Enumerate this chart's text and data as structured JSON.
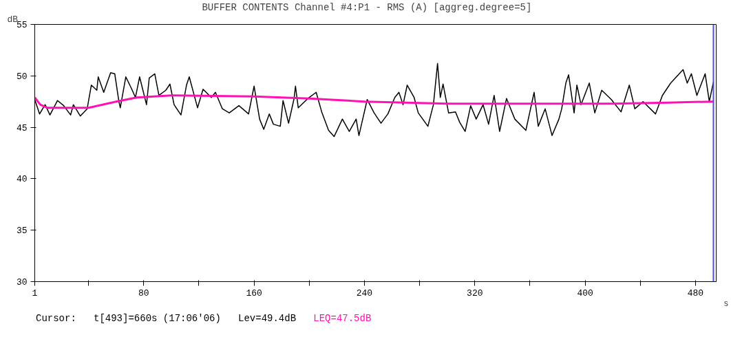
{
  "chart_data": {
    "type": "line",
    "title": "BUFFER CONTENTS  Channel #4:P1  -  RMS (A) [aggreg.degree=5]",
    "xlabel": "s",
    "ylabel": "dB",
    "annotations": [
      "Cursor:   t[493]=660s (17:06'06)"
    ],
    "xlim": [
      1,
      495
    ],
    "ylim": [
      30,
      55
    ],
    "xticks": [
      1,
      {
        "value": 40,
        "label": null
      },
      80,
      {
        "value": 120,
        "label": null
      },
      160,
      {
        "value": 200,
        "label": null
      },
      240,
      {
        "value": 280,
        "label": null
      },
      320,
      {
        "value": 360,
        "label": null
      },
      400,
      {
        "value": 440,
        "label": null
      },
      480
    ],
    "yticks": [
      30,
      35,
      40,
      45,
      50,
      55
    ],
    "grid": false,
    "line_style": "solid",
    "ref_lines": [
      {
        "axis": "x",
        "value": 493,
        "label": null,
        "color": "#5050c8"
      }
    ],
    "series": [
      {
        "name": "Lev=49.4dB",
        "color": "#000000",
        "x": [
          1,
          4.5,
          8.5,
          12,
          17.5,
          22,
          27,
          29,
          34,
          39,
          42,
          46,
          47,
          51,
          56,
          59,
          62,
          63,
          67,
          71,
          74,
          77,
          82,
          84,
          88,
          91,
          96,
          99,
          102,
          107,
          111,
          113,
          119,
          123,
          129,
          132,
          137,
          142,
          149,
          156,
          160,
          164,
          167,
          171,
          174,
          179,
          181,
          185,
          189,
          190,
          192,
          199,
          205,
          209,
          214,
          218,
          224,
          229,
          234,
          236,
          242,
          247,
          252,
          257,
          262,
          265,
          268,
          271,
          276,
          279,
          286,
          290,
          293,
          295,
          297,
          301,
          306,
          309,
          313,
          317,
          321,
          326,
          330,
          334,
          338,
          343,
          349,
          357,
          363,
          366,
          371,
          376,
          381,
          383,
          386,
          388,
          392,
          394,
          397,
          403,
          407,
          412,
          419,
          426,
          432,
          436,
          442,
          451,
          456,
          462,
          471,
          474,
          477,
          481,
          487,
          490,
          493
        ],
        "values": [
          47.7,
          46.3,
          47.2,
          46.2,
          47.6,
          47.1,
          46.2,
          47.2,
          46.1,
          46.8,
          49.1,
          48.6,
          49.9,
          48.4,
          50.3,
          50.2,
          47.5,
          46.9,
          49.9,
          48.8,
          47.9,
          49.9,
          47.2,
          49.8,
          50.2,
          48.1,
          48.6,
          49.2,
          47.2,
          46.2,
          49.1,
          49.9,
          46.9,
          48.7,
          47.9,
          48.4,
          46.8,
          46.4,
          47.1,
          46.3,
          49.0,
          45.8,
          44.8,
          46.3,
          45.3,
          45.1,
          47.6,
          45.4,
          47.8,
          49.0,
          46.9,
          47.8,
          48.4,
          46.5,
          44.7,
          44.1,
          45.8,
          44.6,
          45.8,
          44.2,
          47.7,
          46.4,
          45.4,
          46.3,
          47.9,
          48.4,
          47.2,
          49.1,
          47.9,
          46.4,
          45.1,
          47.2,
          51.2,
          47.9,
          49.2,
          46.4,
          46.5,
          45.5,
          44.6,
          47.1,
          45.8,
          47.2,
          45.3,
          48.1,
          44.6,
          47.8,
          45.8,
          44.7,
          48.4,
          45.1,
          46.8,
          44.2,
          45.8,
          46.8,
          49.3,
          50.1,
          46.4,
          49.1,
          47.2,
          49.3,
          46.4,
          48.6,
          47.7,
          46.5,
          49.1,
          46.8,
          47.5,
          46.3,
          48.1,
          49.3,
          50.6,
          49.3,
          50.2,
          48.1,
          50.2,
          47.5,
          49.4
        ]
      },
      {
        "name": "LEQ=47.5dB",
        "color": "#ff10b0",
        "x": [
          1,
          5,
          10,
          40,
          60,
          75,
          100,
          160,
          200,
          240,
          300,
          360,
          420,
          460,
          493
        ],
        "values": [
          47.9,
          47.2,
          46.9,
          46.9,
          47.5,
          47.9,
          48.1,
          48.0,
          47.8,
          47.5,
          47.3,
          47.3,
          47.3,
          47.4,
          47.5
        ]
      }
    ]
  }
}
